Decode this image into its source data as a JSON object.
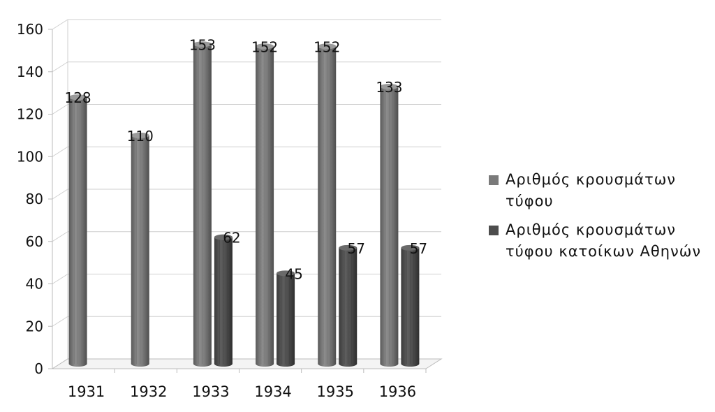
{
  "chart_data": {
    "type": "bar",
    "categories": [
      "1931",
      "1932",
      "1933",
      "1934",
      "1935",
      "1936"
    ],
    "series": [
      {
        "name": "Αριθμός κρουσμάτων τύφου",
        "values": [
          128,
          110,
          153,
          152,
          152,
          133
        ],
        "color": "#7a7a7a"
      },
      {
        "name": "Αριθμός κρουσμάτων τύφου κατοίκων Αθηνών",
        "values": [
          null,
          null,
          62,
          45,
          57,
          57
        ],
        "color": "#4d4d4d"
      }
    ],
    "data_labels": [
      [
        "128",
        "110",
        "153",
        "152",
        "152",
        "133"
      ],
      [
        "",
        "",
        "62",
        "45",
        "57",
        "57"
      ]
    ],
    "y_ticks": [
      "0",
      "20",
      "40",
      "60",
      "80",
      "100",
      "120",
      "140",
      "160"
    ],
    "ylim": [
      0,
      160
    ],
    "grid": true,
    "legend_position": "right",
    "title": "",
    "xlabel": "",
    "ylabel": ""
  }
}
